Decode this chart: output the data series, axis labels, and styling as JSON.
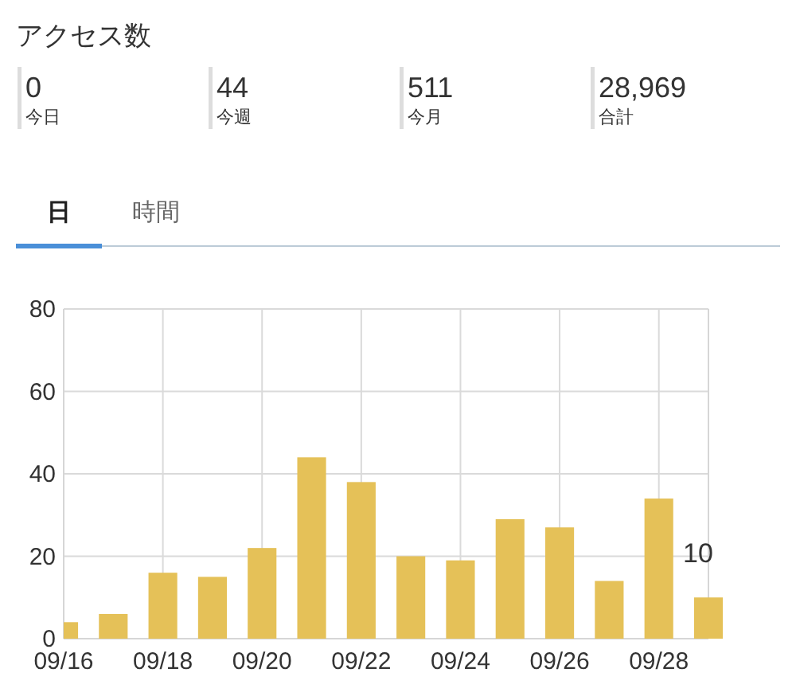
{
  "chart_data": [
    {
      "type": "other",
      "title": "アクセス数",
      "annotations": [
        "0",
        "今日",
        "44",
        "今週",
        "511",
        "今月",
        "28,969",
        "合計"
      ]
    },
    {
      "type": "bar",
      "annotations": [
        "日",
        "時間"
      ],
      "categories": [
        "09/16",
        null,
        "09/18",
        null,
        "09/20",
        null,
        "09/22",
        null,
        "09/24",
        null,
        "09/26",
        null,
        "09/28",
        null
      ],
      "values": [
        4,
        6,
        16,
        15,
        22,
        44,
        38,
        20,
        19,
        29,
        27,
        14,
        34,
        10
      ],
      "value_labels": [
        null,
        null,
        null,
        null,
        null,
        null,
        null,
        null,
        null,
        null,
        null,
        null,
        null,
        "10"
      ],
      "color": "#e5c158",
      "ylim": [
        0,
        80
      ],
      "yticks": [
        0,
        20,
        40,
        60,
        80
      ],
      "grid": true
    }
  ]
}
